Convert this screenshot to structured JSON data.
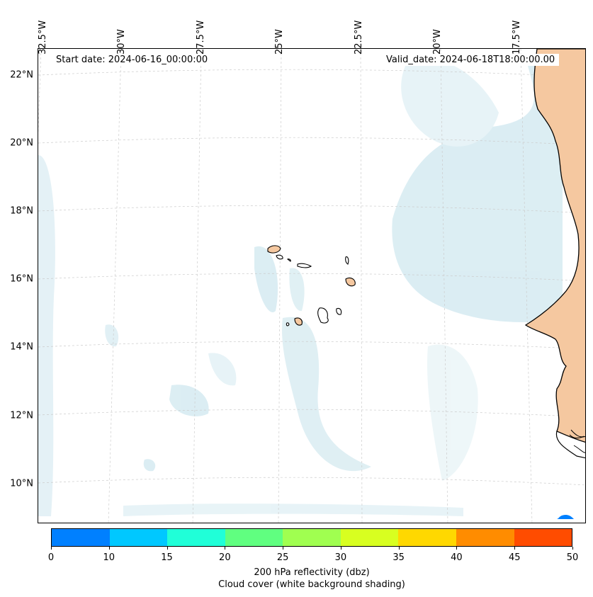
{
  "map": {
    "start_date": "Start date: 2024-06-16_00:00:00",
    "valid_date": "Valid_date: 2024-06-18T18:00:00.00",
    "lat_labels": [
      "22°N",
      "20°N",
      "18°N",
      "16°N",
      "14°N",
      "12°N",
      "10°N"
    ],
    "lon_labels": [
      "32.5°W",
      "30°W",
      "27.5°W",
      "25°W",
      "22.5°W",
      "20°W",
      "17.5°W"
    ],
    "land_color": "#f5c8a0",
    "cloud_color": "#bfe0ea",
    "gridline_color": "#cccccc"
  },
  "colorbar": {
    "title": "200 hPa reflectivity (dbz)",
    "subtitle": "Cloud cover (white background shading)",
    "ticks": [
      "0",
      "10",
      "15",
      "20",
      "25",
      "30",
      "35",
      "40",
      "45",
      "50"
    ],
    "colors": [
      "#0080ff",
      "#00c8ff",
      "#20ffd8",
      "#60ff80",
      "#a0ff50",
      "#d8ff20",
      "#ffd800",
      "#ff8c00",
      "#ff4c00"
    ]
  }
}
